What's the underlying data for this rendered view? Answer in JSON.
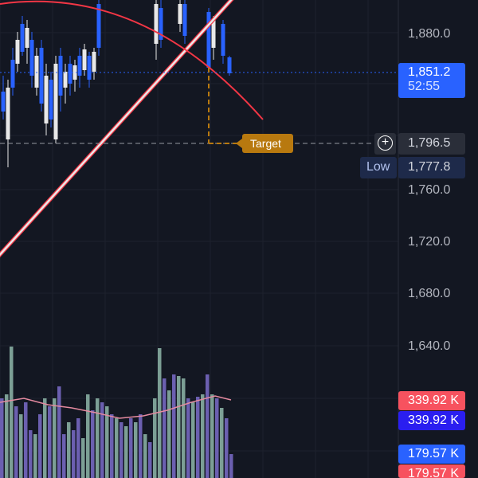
{
  "price_axis": {
    "labels": [
      "1,880.0",
      "1,760.0",
      "1,720.0",
      "1,680.0",
      "1,640.0"
    ]
  },
  "current_price": {
    "value": "1,851.2",
    "countdown": "52:55",
    "color": "#2962ff"
  },
  "target_line": {
    "label": "Target",
    "price": "1,796.5",
    "color": "#b8790f"
  },
  "low": {
    "label": "Low",
    "price": "1,777.8"
  },
  "volume_tags": [
    {
      "value": "339.92 K",
      "color": "#f7525f"
    },
    {
      "value": "339.92 K",
      "color": "#2a1ef0"
    },
    {
      "value": "179.57 K",
      "color": "#2962ff"
    },
    {
      "value": "179.57 K",
      "color": "#f7525f"
    }
  ],
  "colors": {
    "background": "#131722",
    "up_candle": "#2962ff",
    "down_candle": "#e8e8e8",
    "trendline": "#e8e8e8",
    "arc": "#f23645",
    "volume_up": "#7c9f95",
    "volume_down": "#6b5fb0",
    "volume_ma": "#e58aa0"
  },
  "icons": {
    "add_alert": "plus-circle-icon"
  }
}
